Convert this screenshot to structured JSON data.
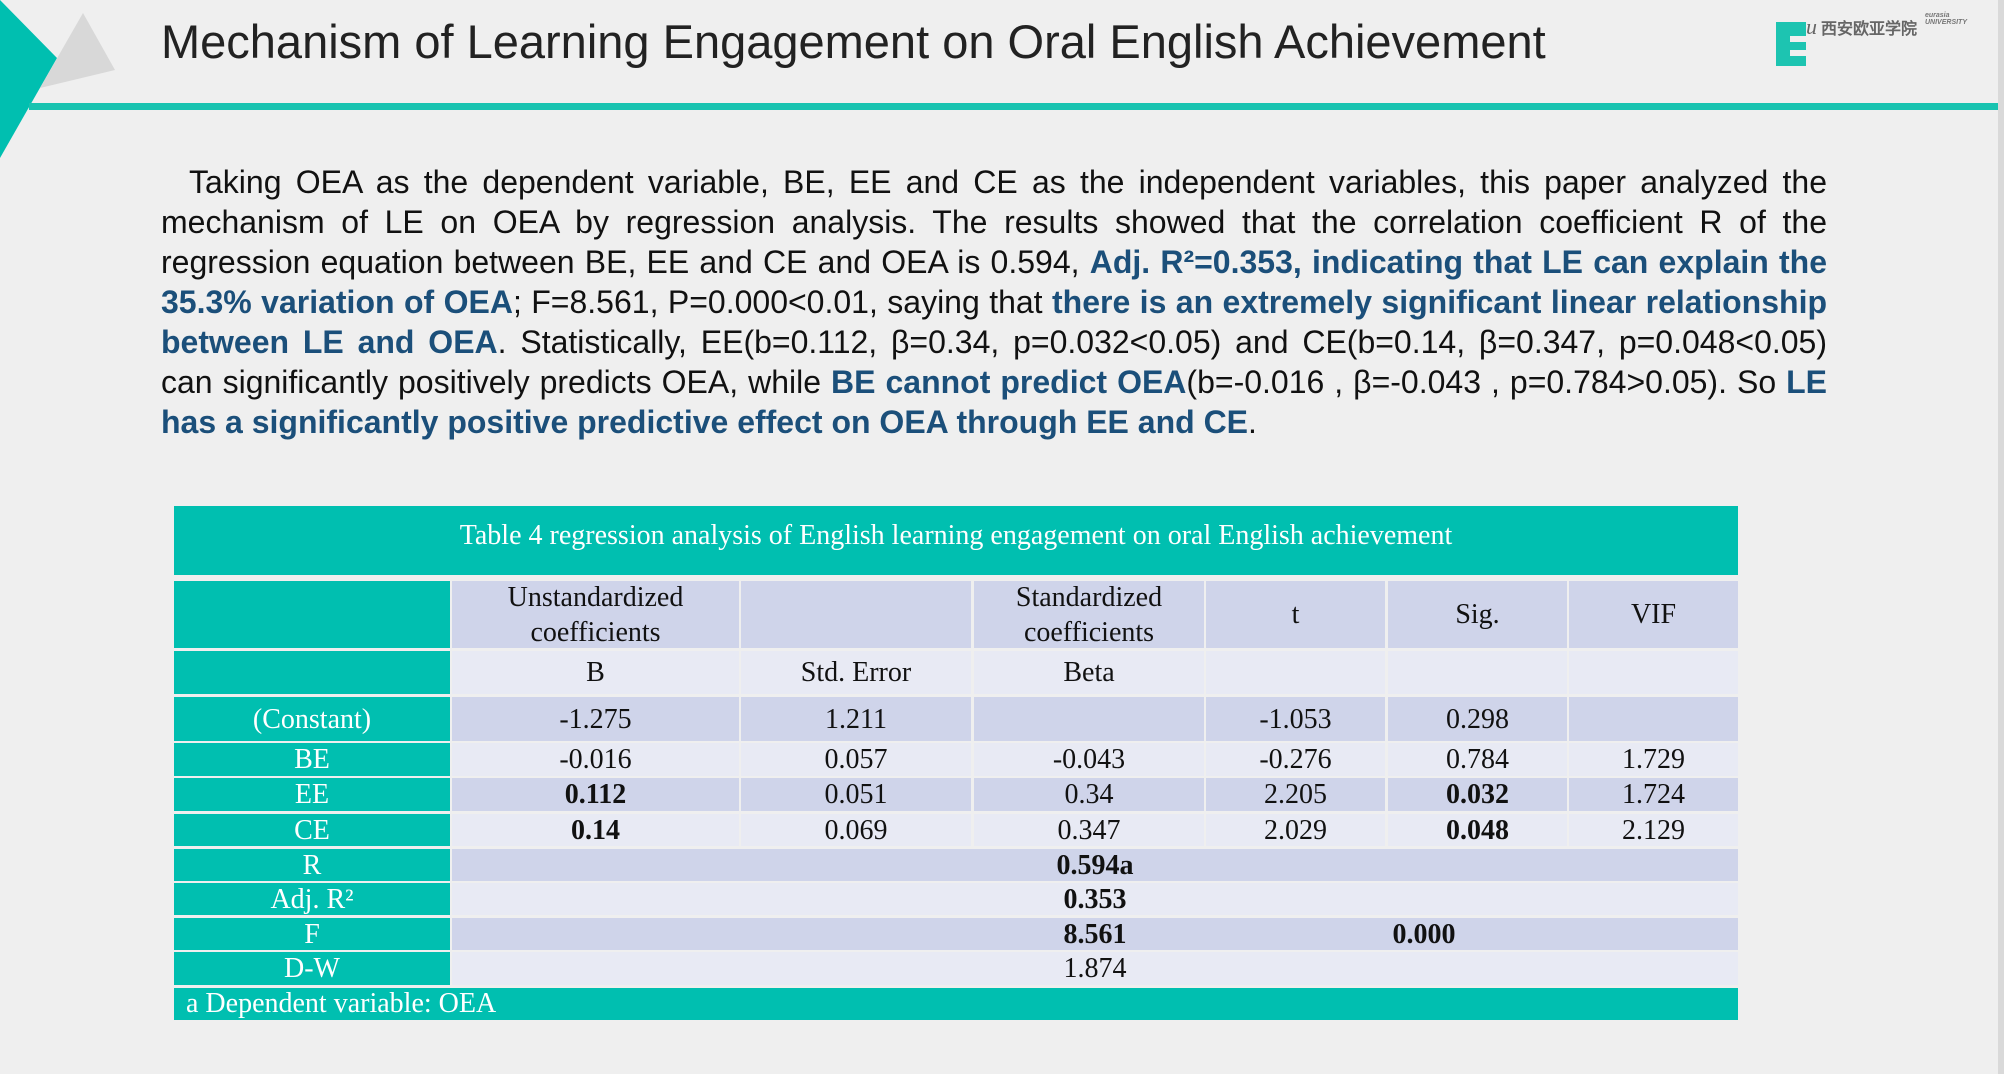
{
  "slide": {
    "title": "Mechanism of Learning Engagement on Oral English Achievement",
    "logo": {
      "letter": "E",
      "script": "u",
      "chinese": "西安欧亚学院",
      "english_top": "eurasia",
      "english_bottom": "UNIVERSITY"
    },
    "accent_color": "#00BFB0",
    "highlight_color": "#1B4F7A"
  },
  "paragraph": [
    {
      "text": "Taking OEA as the dependent variable, BE, EE and CE as the independent variables, this paper analyzed the mechanism of LE on OEA by regression analysis. The results showed that the correlation coefficient R of the regression equation between BE, EE and CE and OEA is 0.594, ",
      "bold": false
    },
    {
      "text": "Adj. R²=0.353, indicating that LE can explain the 35.3% variation of OEA",
      "bold": true
    },
    {
      "text": "; F=8.561, P=0.000<0.01, saying that ",
      "bold": false
    },
    {
      "text": "there is an extremely significant linear relationship between LE and OEA",
      "bold": true
    },
    {
      "text": ". Statistically, EE(b=0.112, β=0.34, p=0.032<0.05) and CE(b=0.14, β=0.347, p=0.048<0.05) can significantly positively predicts OEA, while ",
      "bold": false
    },
    {
      "text": "BE cannot predict OEA",
      "bold": true
    },
    {
      "text": "(b=-0.016 , β=-0.043 , p=0.784>0.05). So ",
      "bold": false
    },
    {
      "text": "LE has a significantly positive predictive effect on OEA through EE and CE",
      "bold": true
    },
    {
      "text": ".",
      "bold": false
    }
  ],
  "table": {
    "caption": "Table 4 regression analysis of English learning engagement on oral English  achievement",
    "header1": [
      "",
      "Unstandardized coefficients",
      "",
      "Standardized coefficients",
      "t",
      "Sig.",
      "VIF"
    ],
    "header2": [
      "",
      "B",
      "Std. Error",
      "Beta",
      "",
      "",
      ""
    ],
    "rows": [
      {
        "label": "(Constant)",
        "cells": [
          "-1.275",
          "1.211",
          "",
          "-1.053",
          "0.298",
          ""
        ],
        "bold": [
          false,
          false,
          false,
          false,
          false,
          false
        ]
      },
      {
        "label": "BE",
        "cells": [
          "-0.016",
          "0.057",
          "-0.043",
          "-0.276",
          "0.784",
          "1.729"
        ],
        "bold": [
          false,
          false,
          false,
          false,
          false,
          false
        ]
      },
      {
        "label": "EE",
        "cells": [
          "0.112",
          "0.051",
          "0.34",
          "2.205",
          "0.032",
          "1.724"
        ],
        "bold": [
          true,
          false,
          false,
          false,
          true,
          false
        ]
      },
      {
        "label": "CE",
        "cells": [
          "0.14",
          "0.069",
          "0.347",
          "2.029",
          "0.048",
          "2.129"
        ],
        "bold": [
          true,
          false,
          false,
          false,
          true,
          false
        ]
      }
    ],
    "summary": [
      {
        "label": "R",
        "value": "0.594a",
        "extra": ""
      },
      {
        "label": "Adj. R²",
        "value": "0.353",
        "extra": ""
      },
      {
        "label": "F",
        "value": "8.561",
        "extra": "0.000"
      },
      {
        "label": "D-W",
        "value": "1.874",
        "extra": ""
      }
    ],
    "footnote": "a Dependent variable: OEA"
  }
}
